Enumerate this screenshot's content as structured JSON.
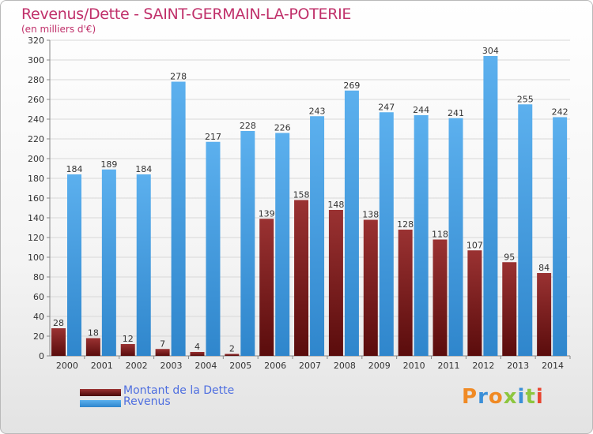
{
  "title": "Revenus/Dette - SAINT-GERMAIN-LA-POTERIE",
  "subtitle": "(en milliers d'€)",
  "legend": {
    "debt": "Montant de la Dette",
    "revenue": "Revenus"
  },
  "logo": {
    "text": "Proxiti"
  },
  "colors": {
    "debt": "#7a1a1a",
    "revenue": "#3a92d8",
    "title": "#c0306a"
  },
  "chart_data": {
    "type": "bar",
    "title": "Revenus/Dette - SAINT-GERMAIN-LA-POTERIE",
    "ylabel": "(en milliers d'€)",
    "ylim": [
      0,
      320
    ],
    "yticks": [
      0,
      20,
      40,
      60,
      80,
      100,
      120,
      140,
      160,
      180,
      200,
      220,
      240,
      260,
      280,
      300,
      320
    ],
    "grid": true,
    "legend_position": "bottom-left",
    "categories": [
      "2000",
      "2001",
      "2002",
      "2003",
      "2004",
      "2005",
      "2006",
      "2007",
      "2008",
      "2009",
      "2010",
      "2011",
      "2012",
      "2013",
      "2014"
    ],
    "series": [
      {
        "name": "Montant de la Dette",
        "values": [
          28,
          18,
          12,
          7,
          4,
          2,
          139,
          158,
          148,
          138,
          128,
          118,
          107,
          95,
          84
        ]
      },
      {
        "name": "Revenus",
        "values": [
          184,
          189,
          184,
          278,
          217,
          228,
          226,
          243,
          269,
          247,
          244,
          241,
          304,
          255,
          242
        ]
      }
    ]
  }
}
